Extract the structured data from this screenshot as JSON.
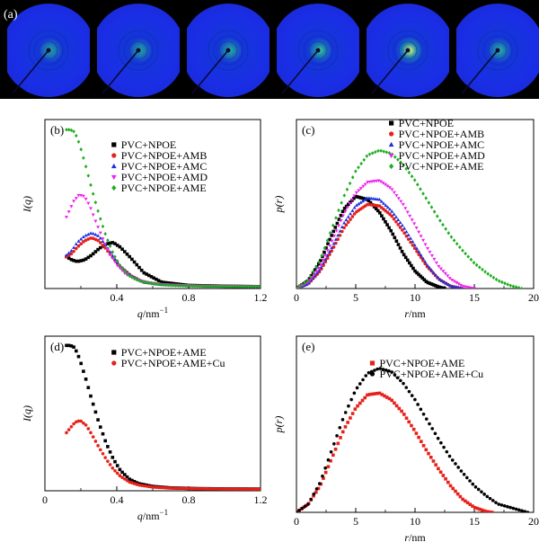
{
  "figure": {
    "saxs_label": "(a)",
    "saxs_images": [
      {
        "name": "image-1",
        "center_color": "#1d9fa6",
        "intensity": 0.35
      },
      {
        "name": "image-2",
        "center_color": "#1d9fa6",
        "intensity": 0.35
      },
      {
        "name": "image-3",
        "center_color": "#22b3a0",
        "intensity": 0.45
      },
      {
        "name": "image-4",
        "center_color": "#3ad19a",
        "intensity": 0.6
      },
      {
        "name": "image-5",
        "center_color": "#d8ff70",
        "intensity": 1.0
      },
      {
        "name": "image-6",
        "center_color": "#2bb7a6",
        "intensity": 0.5
      }
    ]
  },
  "chart_data": [
    {
      "panel_label": "(b)",
      "type": "scatter",
      "xlabel_var": "q",
      "xlabel_unit": "/nm",
      "xlabel_exp": "−1",
      "ylabel": "I(q)",
      "xlim": [
        0,
        1.2
      ],
      "ylim": [
        0,
        1
      ],
      "xticks": [
        0,
        0.4,
        0.8,
        1.2
      ],
      "xtick_labels": [
        "",
        "0.4",
        "0.8",
        "1.2"
      ],
      "legend_position": "top-right",
      "series": [
        {
          "name": "PVC+NPOE",
          "color": "#000000",
          "marker": "square",
          "x": [
            0.12,
            0.15,
            0.18,
            0.22,
            0.26,
            0.3,
            0.34,
            0.38,
            0.42,
            0.48,
            0.55,
            0.65,
            0.8,
            1.0,
            1.2
          ],
          "y": [
            0.2,
            0.18,
            0.17,
            0.18,
            0.21,
            0.25,
            0.28,
            0.29,
            0.26,
            0.19,
            0.1,
            0.04,
            0.02,
            0.015,
            0.012
          ]
        },
        {
          "name": "PVC+NPOE+AMB",
          "color": "#e8201a",
          "marker": "circle",
          "x": [
            0.12,
            0.15,
            0.18,
            0.22,
            0.26,
            0.3,
            0.34,
            0.38,
            0.42,
            0.48,
            0.55,
            0.65,
            0.8,
            1.0,
            1.2
          ],
          "y": [
            0.2,
            0.22,
            0.26,
            0.3,
            0.32,
            0.3,
            0.25,
            0.19,
            0.14,
            0.08,
            0.04,
            0.025,
            0.018,
            0.014,
            0.012
          ]
        },
        {
          "name": "PVC+NPOE+AMC",
          "color": "#1f2fdc",
          "marker": "triangle",
          "x": [
            0.12,
            0.15,
            0.18,
            0.22,
            0.26,
            0.3,
            0.34,
            0.38,
            0.42,
            0.48,
            0.55,
            0.65,
            0.8,
            1.0,
            1.2
          ],
          "y": [
            0.21,
            0.24,
            0.29,
            0.33,
            0.35,
            0.33,
            0.27,
            0.2,
            0.14,
            0.08,
            0.04,
            0.025,
            0.018,
            0.014,
            0.012
          ]
        },
        {
          "name": "PVC+NPOE+AMD",
          "color": "#ee22ee",
          "marker": "triangle-down",
          "x": [
            0.12,
            0.14,
            0.16,
            0.19,
            0.22,
            0.25,
            0.28,
            0.32,
            0.36,
            0.4,
            0.45,
            0.5,
            0.6,
            0.75,
            0.9,
            1.2
          ],
          "y": [
            0.45,
            0.5,
            0.55,
            0.59,
            0.58,
            0.52,
            0.43,
            0.32,
            0.22,
            0.15,
            0.09,
            0.06,
            0.03,
            0.02,
            0.015,
            0.012
          ]
        },
        {
          "name": "PVC+NPOE+AME",
          "color": "#1fae1f",
          "marker": "diamond",
          "x": [
            0.12,
            0.14,
            0.16,
            0.18,
            0.2,
            0.23,
            0.26,
            0.3,
            0.34,
            0.38,
            0.42,
            0.47,
            0.52,
            0.6,
            0.7,
            0.85,
            1.0,
            1.2
          ],
          "y": [
            1.0,
            1.0,
            0.99,
            0.95,
            0.88,
            0.76,
            0.63,
            0.47,
            0.33,
            0.22,
            0.14,
            0.08,
            0.05,
            0.03,
            0.02,
            0.015,
            0.013,
            0.012
          ]
        }
      ]
    },
    {
      "panel_label": "(c)",
      "type": "scatter",
      "xlabel_var": "r",
      "xlabel_unit": "/nm",
      "xlabel_exp": "",
      "ylabel": "p(r)",
      "xlim": [
        0,
        20
      ],
      "ylim": [
        0,
        1
      ],
      "xticks": [
        0,
        5,
        10,
        15,
        20
      ],
      "xtick_labels": [
        "0",
        "5",
        "10",
        "15",
        "20"
      ],
      "legend_position": "top-right",
      "series": [
        {
          "name": "PVC+NPOE",
          "color": "#000000",
          "marker": "square",
          "x": [
            0,
            1,
            2,
            3,
            4,
            5,
            6,
            7,
            8,
            9,
            10,
            11,
            12,
            12.5
          ],
          "y": [
            0,
            0.05,
            0.17,
            0.34,
            0.5,
            0.58,
            0.56,
            0.48,
            0.36,
            0.22,
            0.11,
            0.04,
            0.01,
            0
          ]
        },
        {
          "name": "PVC+NPOE+AMB",
          "color": "#e8201a",
          "marker": "circle",
          "x": [
            0,
            1,
            2,
            3,
            4,
            5,
            6,
            7,
            8,
            9,
            10,
            11,
            12,
            13,
            14
          ],
          "y": [
            0,
            0.03,
            0.11,
            0.24,
            0.38,
            0.48,
            0.53,
            0.52,
            0.46,
            0.36,
            0.25,
            0.14,
            0.06,
            0.015,
            0
          ]
        },
        {
          "name": "PVC+NPOE+AMC",
          "color": "#1f2fdc",
          "marker": "triangle",
          "x": [
            0,
            1,
            2,
            3,
            4,
            5,
            6,
            7,
            8,
            9,
            10,
            11,
            12,
            13,
            14
          ],
          "y": [
            0,
            0.03,
            0.12,
            0.26,
            0.41,
            0.52,
            0.57,
            0.56,
            0.49,
            0.39,
            0.27,
            0.15,
            0.06,
            0.015,
            0
          ]
        },
        {
          "name": "PVC+NPOE+AMD",
          "color": "#ee22ee",
          "marker": "triangle-down",
          "x": [
            0,
            1,
            2,
            3,
            4,
            5,
            6,
            7,
            8,
            9,
            10,
            11,
            12,
            13,
            14,
            15
          ],
          "y": [
            0,
            0.04,
            0.14,
            0.3,
            0.47,
            0.6,
            0.67,
            0.68,
            0.63,
            0.53,
            0.4,
            0.26,
            0.14,
            0.06,
            0.015,
            0
          ]
        },
        {
          "name": "PVC+NPOE+AME",
          "color": "#1fae1f",
          "marker": "diamond",
          "x": [
            0,
            1,
            2,
            3,
            4,
            5,
            6,
            7,
            8,
            9,
            10,
            11,
            12,
            13,
            14,
            15,
            16,
            17,
            18,
            19
          ],
          "y": [
            0,
            0.05,
            0.18,
            0.38,
            0.58,
            0.74,
            0.84,
            0.87,
            0.85,
            0.78,
            0.68,
            0.56,
            0.44,
            0.33,
            0.24,
            0.16,
            0.1,
            0.05,
            0.02,
            0
          ]
        }
      ]
    },
    {
      "panel_label": "(d)",
      "type": "scatter",
      "xlabel_var": "q",
      "xlabel_unit": "/nm",
      "xlabel_exp": "−1",
      "ylabel": "I(q)",
      "xlim": [
        0,
        1.2
      ],
      "ylim": [
        0,
        1
      ],
      "xticks": [
        0,
        0.4,
        0.8,
        1.2
      ],
      "xtick_labels": [
        "0",
        "0.4",
        "0.8",
        "1.2"
      ],
      "legend_position": "top-right",
      "series": [
        {
          "name": "PVC+NPOE+AME",
          "color": "#000000",
          "marker": "square",
          "x": [
            0.12,
            0.14,
            0.16,
            0.18,
            0.2,
            0.23,
            0.26,
            0.3,
            0.34,
            0.38,
            0.42,
            0.47,
            0.52,
            0.6,
            0.7,
            0.85,
            1.0,
            1.2
          ],
          "y": [
            1.0,
            1.0,
            0.99,
            0.95,
            0.88,
            0.76,
            0.63,
            0.47,
            0.33,
            0.22,
            0.14,
            0.08,
            0.05,
            0.03,
            0.02,
            0.015,
            0.013,
            0.012
          ]
        },
        {
          "name": "PVC+NPOE+AME+Cu",
          "color": "#e8201a",
          "marker": "circle",
          "x": [
            0.12,
            0.14,
            0.16,
            0.18,
            0.2,
            0.23,
            0.26,
            0.3,
            0.34,
            0.38,
            0.42,
            0.47,
            0.52,
            0.6,
            0.7,
            0.85,
            1.0,
            1.2
          ],
          "y": [
            0.4,
            0.43,
            0.46,
            0.48,
            0.48,
            0.45,
            0.39,
            0.3,
            0.22,
            0.15,
            0.1,
            0.06,
            0.04,
            0.025,
            0.018,
            0.014,
            0.012,
            0.011
          ]
        }
      ]
    },
    {
      "panel_label": "(e)",
      "type": "scatter",
      "xlabel_var": "r",
      "xlabel_unit": "/nm",
      "xlabel_exp": "",
      "ylabel": "p(r)",
      "xlim": [
        0,
        20
      ],
      "ylim": [
        0,
        1
      ],
      "xticks": [
        0,
        5,
        10,
        15,
        20
      ],
      "xtick_labels": [
        "0",
        "5",
        "10",
        "15",
        "20"
      ],
      "legend_position": "top-left",
      "series": [
        {
          "name": "PVC+NPOE+AME",
          "color": "#e8201a",
          "marker": "square",
          "x": [
            0,
            1,
            2,
            3,
            4,
            5,
            6,
            7,
            8,
            9,
            10,
            11,
            12,
            13,
            14,
            15,
            16,
            16.5
          ],
          "y": [
            0,
            0.05,
            0.16,
            0.33,
            0.5,
            0.63,
            0.71,
            0.72,
            0.68,
            0.6,
            0.49,
            0.37,
            0.26,
            0.16,
            0.08,
            0.03,
            0.005,
            0
          ]
        },
        {
          "name": "PVC+NPOE+AME+Cu",
          "color": "#000000",
          "marker": "circle",
          "x": [
            0,
            1,
            2,
            3,
            4,
            5,
            6,
            7,
            8,
            9,
            10,
            11,
            12,
            13,
            14,
            15,
            16,
            17,
            18,
            19,
            19.5
          ],
          "y": [
            0,
            0.05,
            0.18,
            0.38,
            0.58,
            0.74,
            0.84,
            0.87,
            0.85,
            0.78,
            0.68,
            0.56,
            0.44,
            0.33,
            0.24,
            0.16,
            0.1,
            0.05,
            0.03,
            0.01,
            0
          ]
        }
      ]
    }
  ]
}
